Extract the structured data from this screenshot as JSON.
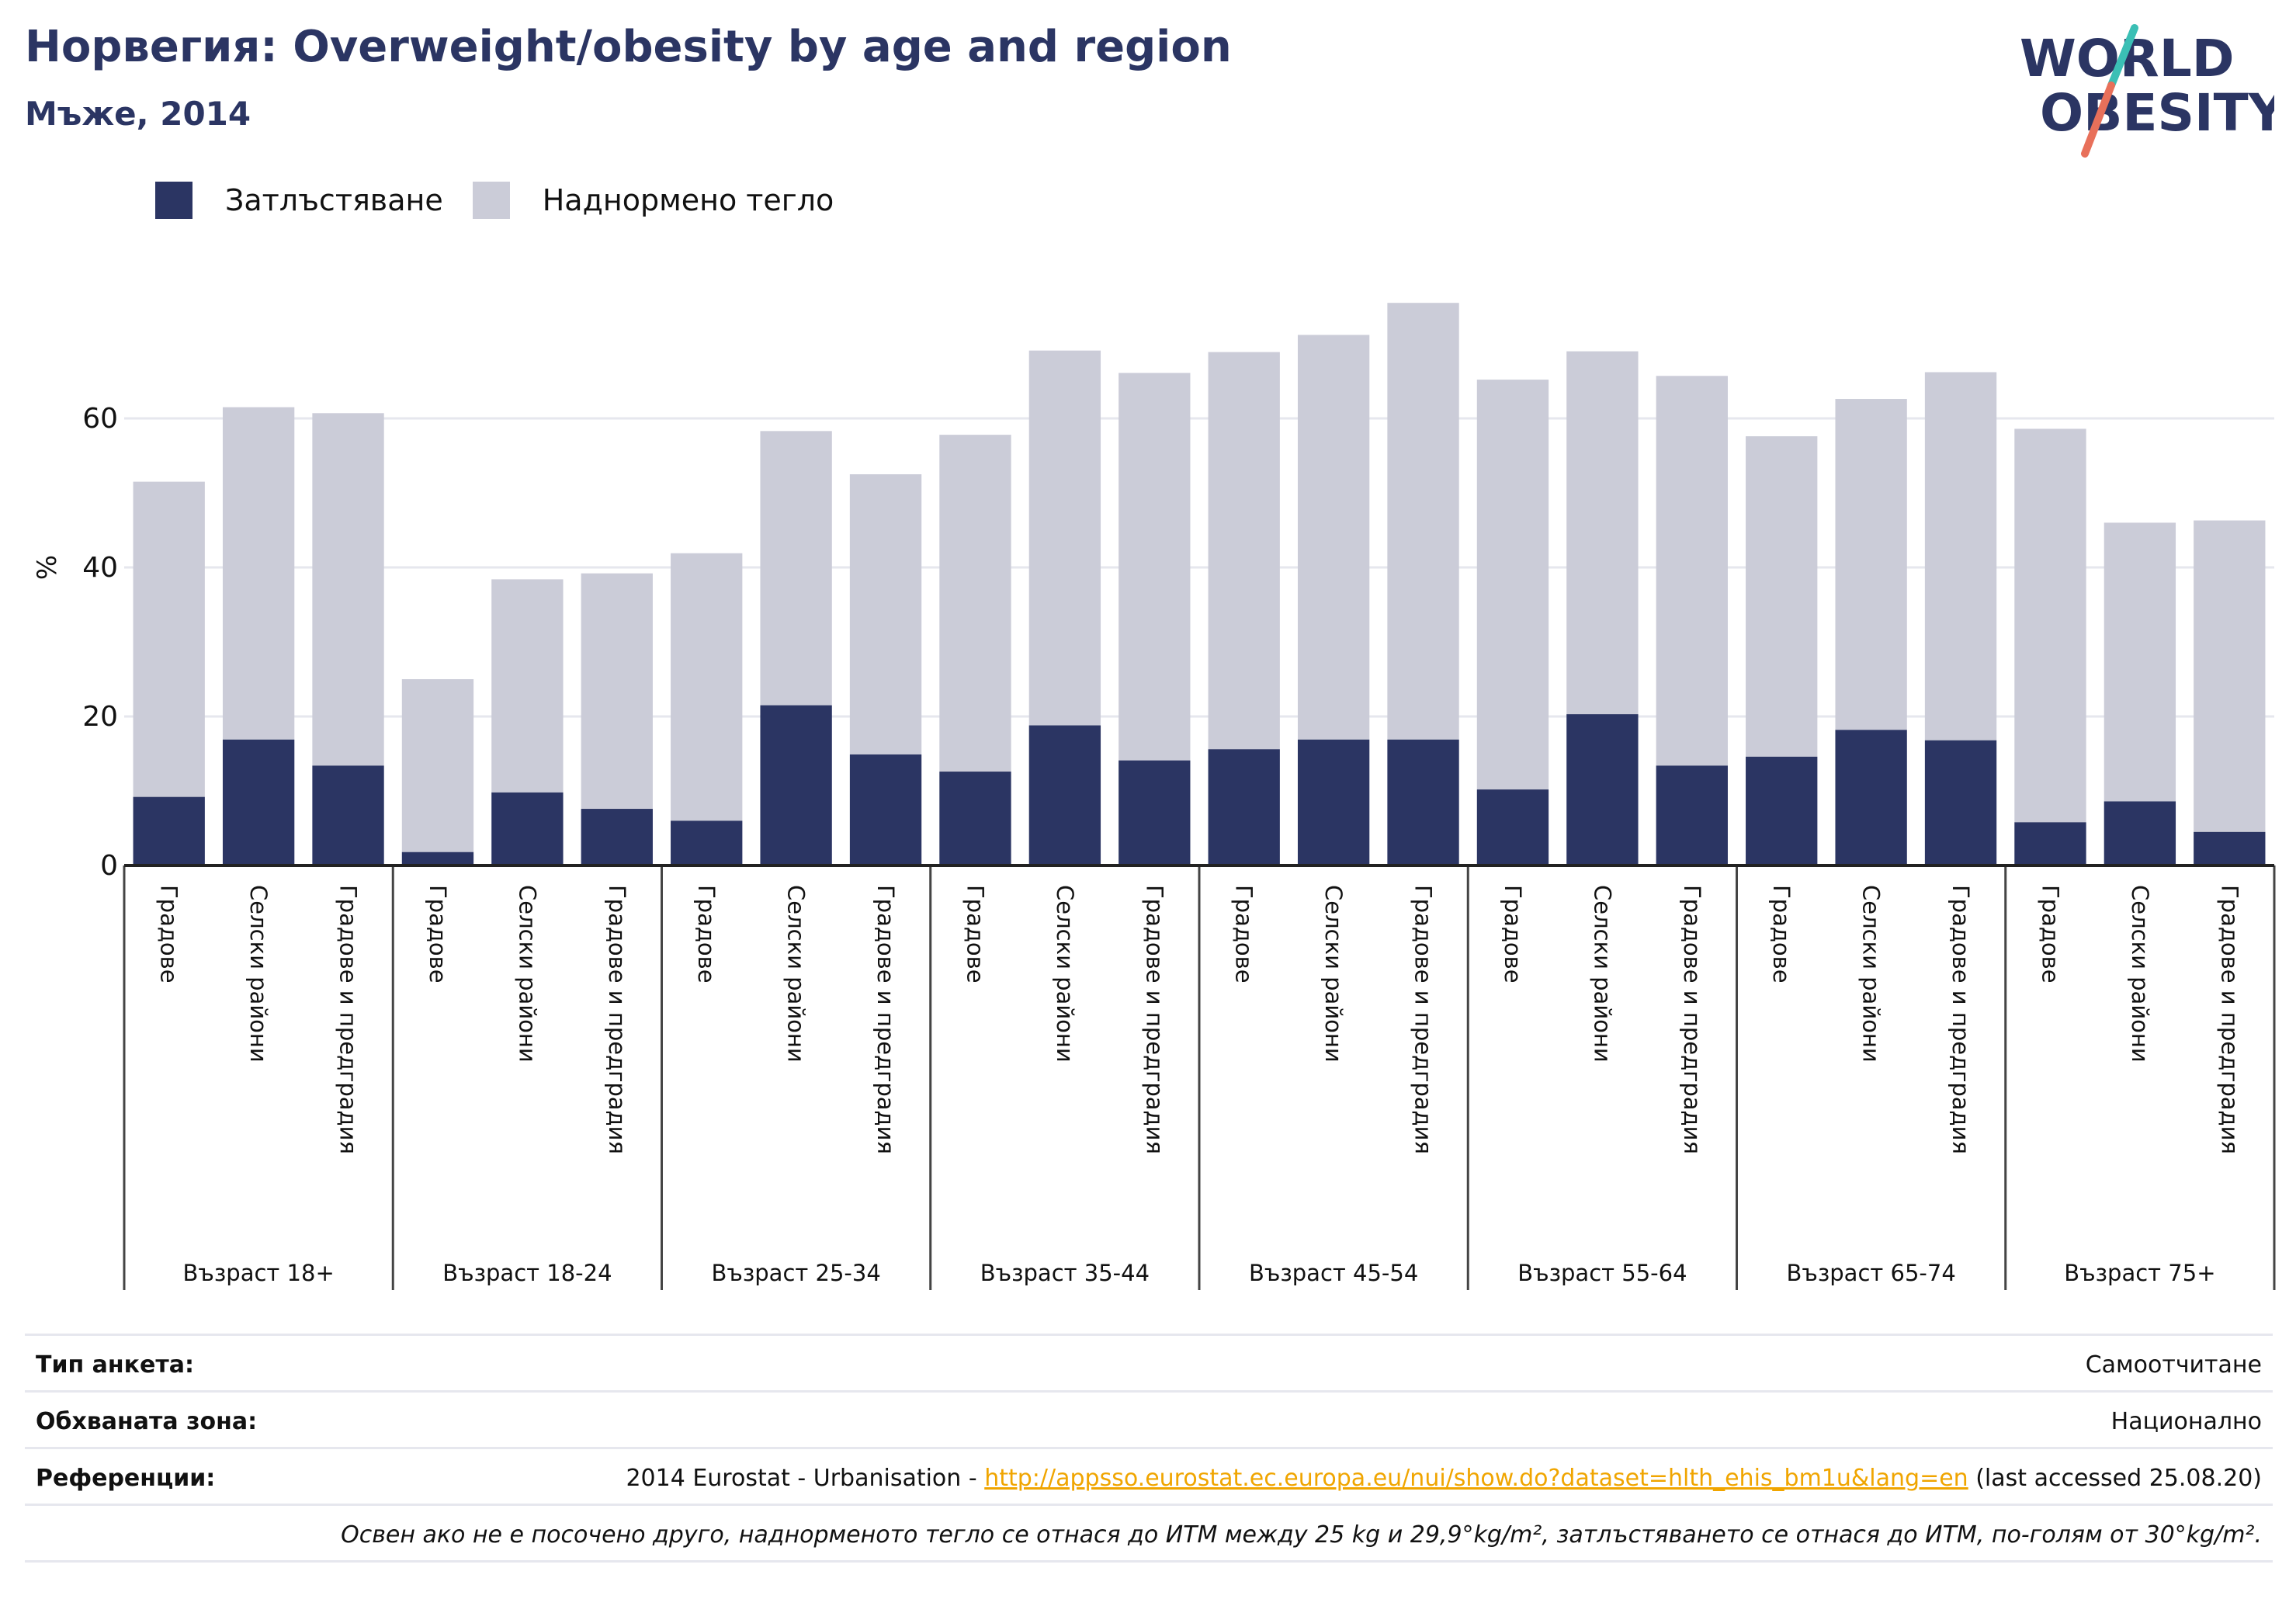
{
  "header": {
    "title": "Норвегия: Overweight/obesity by age and region",
    "subtitle": "Мъже, 2014",
    "logo_line1": "WORLD",
    "logo_line2": "OBESITY"
  },
  "colors": {
    "obesity": "#2b3563",
    "overweight": "#cbccd8",
    "title": "#2b3563",
    "logo_accent_teal": "#3bbfb5",
    "logo_accent_coral": "#e8705a",
    "link": "#f0a500"
  },
  "legend": [
    {
      "label": "Затлъстяване",
      "color": "#2b3563"
    },
    {
      "label": "Наднормено тегло",
      "color": "#cbccd8"
    }
  ],
  "chart_data": {
    "type": "bar",
    "stacked": true,
    "ylabel": "%",
    "ylim": [
      0,
      80
    ],
    "yticks": [
      0,
      20,
      40,
      60
    ],
    "grid": true,
    "legend_position": "top-left",
    "groups": [
      "Възраст 18+",
      "Възраст 18-24",
      "Възраст 25-34",
      "Възраст 35-44",
      "Възраст 45-54",
      "Възраст 55-64",
      "Възраст 65-74",
      "Възраст 75+"
    ],
    "categories_per_group": [
      "Градове",
      "Селски райони",
      "Градове и предградия"
    ],
    "series": [
      {
        "name": "Затлъстяване",
        "values": [
          9.2,
          16.9,
          13.4,
          1.8,
          9.8,
          7.6,
          6.0,
          21.5,
          14.9,
          12.6,
          18.8,
          14.1,
          15.6,
          16.9,
          16.9,
          10.2,
          20.3,
          13.4,
          14.6,
          18.2,
          16.8,
          5.8,
          8.6,
          4.5
        ]
      },
      {
        "name": "Наднормено тегло",
        "values": [
          42.3,
          44.6,
          47.3,
          23.2,
          28.6,
          31.6,
          35.9,
          36.8,
          37.6,
          45.2,
          50.3,
          52.0,
          53.3,
          54.3,
          58.6,
          55.0,
          48.7,
          52.3,
          43.0,
          44.4,
          49.4,
          52.8,
          37.4,
          41.8
        ]
      }
    ]
  },
  "info": {
    "survey_label": "Тип анкета:",
    "survey_value": "Самоотчитане",
    "area_label": "Обхваната зона:",
    "area_value": "Национално",
    "ref_label": "Референции:",
    "ref_prefix": "2014 Eurostat - Urbanisation - ",
    "ref_link": "http://appsso.eurostat.ec.europa.eu/nui/show.do?dataset=hlth_ehis_bm1u&lang=en",
    "ref_suffix": " (last accessed 25.08.20)",
    "note": "Освен ако не е посочено друго, наднорменото тегло се отнася до ИТМ между 25 kg и 29,9°kg/m², затлъстяването се отнася до ИТМ, по-голям от 30°kg/m²."
  }
}
